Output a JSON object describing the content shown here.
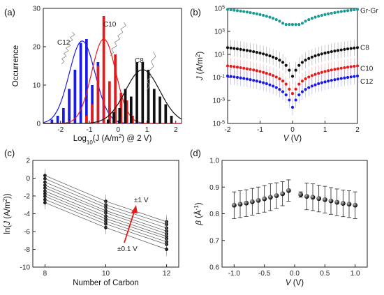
{
  "panels": {
    "a": {
      "label": "(a)"
    },
    "b": {
      "label": "(b)"
    },
    "c": {
      "label": "(c)"
    },
    "d": {
      "label": "(d)"
    }
  },
  "colors": {
    "C12": "#1a1ae6",
    "C10": "#e61a1a",
    "C8": "#111111",
    "GrGr": "#1a9a90"
  },
  "chart_data": [
    {
      "id": "a",
      "type": "bar",
      "ylabel": "Occurrence",
      "xlabel_parts": [
        "Log",
        "10",
        "(J (A/m",
        "2",
        ") @ 2 V)"
      ],
      "xlim": [
        -2.6,
        2.2
      ],
      "ylim": [
        0,
        30
      ],
      "xticks": [
        -2,
        -1,
        0,
        1,
        2
      ],
      "xtick_labels": [
        "-2",
        "-1",
        "0",
        "1",
        "2"
      ],
      "yticks": [
        0,
        10,
        20,
        30
      ],
      "ytick_labels": [
        "0",
        "10",
        "20",
        "30"
      ],
      "series": [
        {
          "name": "C12",
          "color": "#1a1ae6",
          "x": [
            -2.3,
            -2.1,
            -1.9,
            -1.7,
            -1.5,
            -1.3,
            -1.1,
            -0.9,
            -0.7,
            -0.5,
            -0.3,
            -0.1
          ],
          "values": [
            1,
            2,
            4,
            9,
            14,
            21,
            22,
            10,
            16,
            9,
            4,
            1
          ],
          "fit": {
            "mu": -1.25,
            "sigma": 0.45,
            "amp": 21.5
          }
        },
        {
          "name": "C10",
          "color": "#e61a1a",
          "x": [
            -1.1,
            -0.9,
            -0.7,
            -0.5,
            -0.3,
            -0.1,
            0.1,
            0.3,
            0.5
          ],
          "values": [
            2,
            5,
            15,
            28,
            11,
            18,
            8,
            6,
            2
          ],
          "fit": {
            "mu": -0.5,
            "sigma": 0.42,
            "amp": 22
          }
        },
        {
          "name": "C8",
          "color": "#111111",
          "x": [
            -0.35,
            -0.15,
            0.05,
            0.25,
            0.45,
            0.65,
            0.85,
            1.05,
            1.25,
            1.45,
            1.65,
            1.85
          ],
          "values": [
            1,
            3,
            4,
            9,
            7,
            16,
            16,
            14,
            9,
            7,
            5,
            2
          ],
          "fit": {
            "mu": 0.85,
            "sigma": 0.6,
            "amp": 14
          }
        }
      ],
      "annotations": [
        "C12",
        "C10",
        "C8"
      ]
    },
    {
      "id": "b",
      "type": "scatter",
      "ylabel_parts": [
        "J",
        " (A/m",
        "2",
        ")"
      ],
      "xlabel_parts": [
        "V",
        " (V)"
      ],
      "xlim": [
        -2,
        2
      ],
      "ylim_log10": [
        -5,
        5
      ],
      "yscale": "log",
      "xticks": [
        -2,
        -1,
        0,
        1,
        2
      ],
      "xtick_labels": [
        "-2",
        "-1",
        "0",
        "1",
        "2"
      ],
      "ytick_exps": [
        -5,
        -3,
        -1,
        1,
        3,
        5
      ],
      "ytick_base": "10",
      "ytick_sup": [
        "-5",
        "-3",
        "-1",
        "1",
        "3",
        "5"
      ],
      "series": [
        {
          "name": "Gr-Gr",
          "color": "#1a9a90",
          "model": {
            "a": 4.45,
            "b": 1.5,
            "c": 3.6
          },
          "err": 0.05
        },
        {
          "name": "C8",
          "color": "#111111",
          "model": {
            "a": 1.1,
            "b": 1.6,
            "c": -0.9
          },
          "err": 0.7
        },
        {
          "name": "C10",
          "color": "#e61a1a",
          "model": {
            "a": -0.5,
            "b": 1.65,
            "c": -2.4
          },
          "err": 0.7
        },
        {
          "name": "C12",
          "color": "#1a1ae6",
          "model": {
            "a": -1.4,
            "b": 1.7,
            "c": -3.6
          },
          "err": 0.7
        }
      ]
    },
    {
      "id": "c",
      "type": "line",
      "ylabel_parts": [
        "ln(",
        "J",
        " (A/m",
        "2",
        "))"
      ],
      "xlabel": "Number of Carbon",
      "xlim": [
        7.6,
        12.4
      ],
      "ylim": [
        -10,
        2
      ],
      "xticks": [
        8,
        10,
        12
      ],
      "xtick_labels": [
        "8",
        "10",
        "12"
      ],
      "yticks": [
        -10,
        -8,
        -6,
        -4,
        -2,
        0,
        2
      ],
      "ytick_labels": [
        "-10",
        "-8",
        "-6",
        "-4",
        "-2",
        "0",
        "2"
      ],
      "x": [
        8,
        10,
        12
      ],
      "series_values": [
        [
          0.3,
          -2.6,
          -4.9
        ],
        [
          -0.05,
          -3.0,
          -5.2
        ],
        [
          -0.45,
          -3.3,
          -5.6
        ],
        [
          -0.8,
          -3.65,
          -5.95
        ],
        [
          -1.1,
          -3.9,
          -6.25
        ],
        [
          -1.45,
          -4.25,
          -6.55
        ],
        [
          -1.75,
          -4.55,
          -6.8
        ],
        [
          -2.05,
          -4.85,
          -7.15
        ],
        [
          -2.4,
          -5.15,
          -7.45
        ],
        [
          -2.75,
          -5.55,
          -8.0
        ]
      ],
      "err": 0.75,
      "annotations": {
        "top": "±1 V",
        "bottom": "±0.1 V"
      }
    },
    {
      "id": "d",
      "type": "scatter",
      "ylabel_parts": [
        "β",
        " (Å",
        "-1",
        ")"
      ],
      "xlabel_parts": [
        "V",
        " (V)"
      ],
      "xlim": [
        -1.2,
        1.2
      ],
      "ylim": [
        0.6,
        1.0
      ],
      "xticks": [
        -1.0,
        -0.5,
        0.0,
        0.5,
        1.0
      ],
      "xtick_labels": [
        "-1.0",
        "-0.5",
        "0.0",
        "0.5",
        "1.0"
      ],
      "yticks": [
        0.6,
        0.7,
        0.8,
        0.9,
        1.0
      ],
      "ytick_labels": [
        "0.6",
        "0.7",
        "0.8",
        "0.9",
        "1.0"
      ],
      "x": [
        -1.0,
        -0.9,
        -0.8,
        -0.7,
        -0.6,
        -0.5,
        -0.4,
        -0.3,
        -0.2,
        -0.1,
        0.1,
        0.2,
        0.3,
        0.4,
        0.5,
        0.6,
        0.7,
        0.8,
        0.9,
        1.0
      ],
      "values": [
        0.832,
        0.836,
        0.84,
        0.845,
        0.85,
        0.856,
        0.862,
        0.868,
        0.875,
        0.887,
        0.872,
        0.865,
        0.862,
        0.857,
        0.853,
        0.848,
        0.843,
        0.839,
        0.836,
        0.832
      ],
      "err": [
        0.05,
        0.05,
        0.05,
        0.05,
        0.05,
        0.05,
        0.05,
        0.048,
        0.045,
        0.04,
        0.01,
        0.05,
        0.05,
        0.05,
        0.05,
        0.05,
        0.05,
        0.05,
        0.05,
        0.05
      ]
    }
  ]
}
